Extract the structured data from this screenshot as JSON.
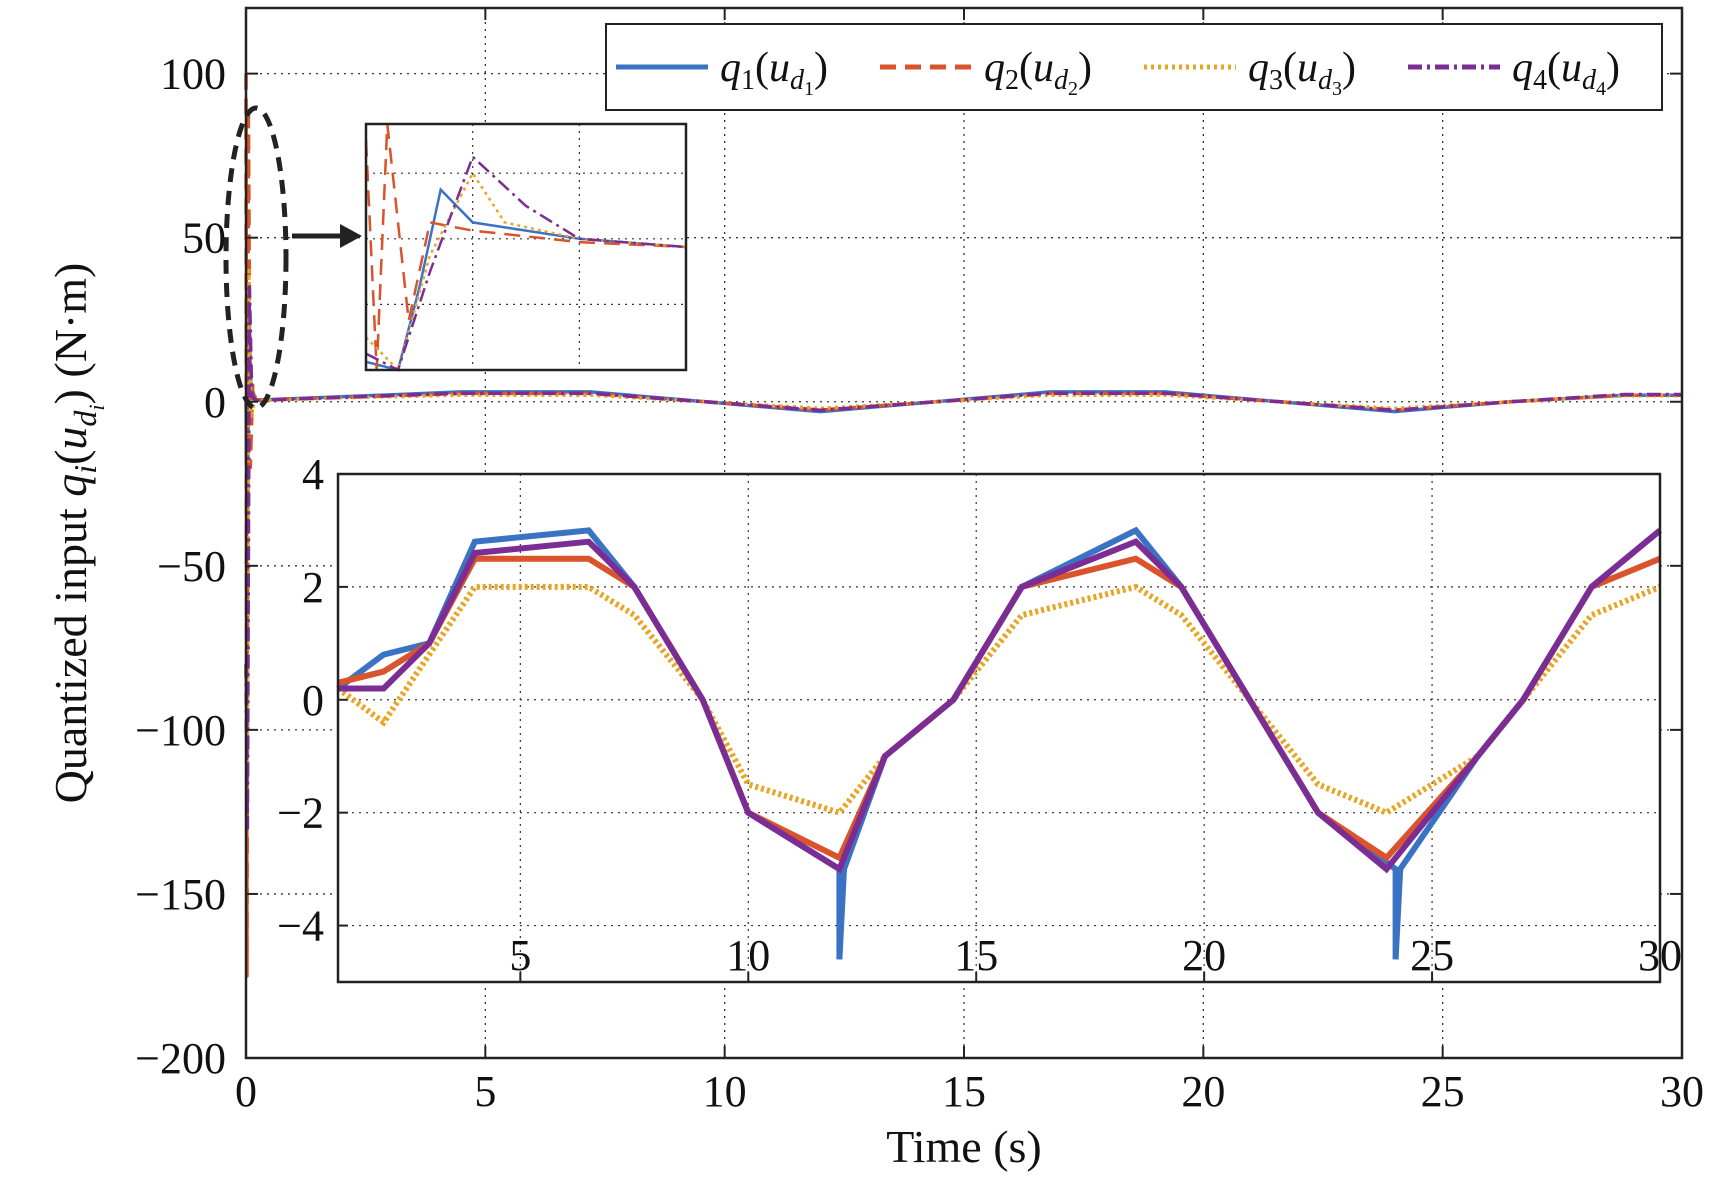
{
  "chart_data": {
    "type": "line",
    "xlabel": "Time (s)",
    "ylabel_prefix": "Quantized input ",
    "ylabel_unit": " (N·m)",
    "ylabel_q": "q",
    "ylabel_i": "i",
    "ylabel_u": "u",
    "ylabel_d": "d",
    "xlim": [
      0,
      30
    ],
    "ylim": [
      -200,
      120
    ],
    "xticks": [
      "0",
      "5",
      "10",
      "15",
      "20",
      "25",
      "30"
    ],
    "yticks": [
      "100",
      "50",
      "0",
      "−50",
      "−100",
      "−150",
      "−200"
    ],
    "ytick_values": [
      100,
      50,
      0,
      -50,
      -100,
      -150,
      -200
    ],
    "grid": true,
    "legend_position": "top-right",
    "series": [
      {
        "name": "q1(ud1)",
        "q_label": "q",
        "sub": "1",
        "u_label": "u",
        "d_label": "d",
        "d_sub": "1",
        "color": "#3b73c4",
        "dash": "solid",
        "values": [
          [
            0,
            0
          ],
          [
            0.03,
            -40
          ],
          [
            0.06,
            30
          ],
          [
            0.1,
            5
          ],
          [
            0.2,
            0.5
          ],
          [
            2,
            1.5
          ],
          [
            4.5,
            3
          ],
          [
            7.2,
            3
          ],
          [
            9.6,
            0
          ],
          [
            12,
            -3
          ],
          [
            14.4,
            0
          ],
          [
            16.8,
            3
          ],
          [
            19.2,
            3
          ],
          [
            21.6,
            0
          ],
          [
            24,
            -3
          ],
          [
            26.4,
            0
          ],
          [
            28.8,
            2
          ],
          [
            30,
            2
          ]
        ]
      },
      {
        "name": "q2(ud2)",
        "q_label": "q",
        "sub": "2",
        "u_label": "u",
        "d_label": "d",
        "d_sub": "2",
        "color": "#d9532b",
        "dash": "dashed",
        "values": [
          [
            0,
            100
          ],
          [
            0.02,
            -175
          ],
          [
            0.05,
            90
          ],
          [
            0.09,
            -20
          ],
          [
            0.14,
            5
          ],
          [
            0.2,
            0.5
          ],
          [
            2,
            1.3
          ],
          [
            4.5,
            2.5
          ],
          [
            7.2,
            2.5
          ],
          [
            9.6,
            0
          ],
          [
            12,
            -2.5
          ],
          [
            14.4,
            0
          ],
          [
            16.8,
            2.5
          ],
          [
            19.2,
            2.5
          ],
          [
            21.6,
            0
          ],
          [
            24,
            -2.5
          ],
          [
            26.4,
            0
          ],
          [
            28.8,
            2
          ],
          [
            30,
            2
          ]
        ]
      },
      {
        "name": "q3(ud3)",
        "q_label": "q",
        "sub": "3",
        "u_label": "u",
        "d_label": "d",
        "d_sub": "3",
        "color": "#e8a523",
        "dash": "dotted",
        "values": [
          [
            0,
            -80
          ],
          [
            0.03,
            -110
          ],
          [
            0.06,
            40
          ],
          [
            0.1,
            -5
          ],
          [
            0.18,
            0.3
          ],
          [
            2,
            1.2
          ],
          [
            4.5,
            2
          ],
          [
            7.2,
            2
          ],
          [
            9.6,
            0
          ],
          [
            12,
            -2
          ],
          [
            14.4,
            0
          ],
          [
            16.8,
            2
          ],
          [
            19.2,
            2
          ],
          [
            21.6,
            0
          ],
          [
            24,
            -2
          ],
          [
            26.4,
            0
          ],
          [
            28.8,
            1.8
          ],
          [
            30,
            1.8
          ]
        ]
      },
      {
        "name": "q4(ud4)",
        "q_label": "q",
        "sub": "4",
        "u_label": "u",
        "d_label": "d",
        "d_sub": "4",
        "color": "#7b2d93",
        "dash": "dashdot",
        "values": [
          [
            0,
            -80
          ],
          [
            0.03,
            -130
          ],
          [
            0.07,
            35
          ],
          [
            0.12,
            2
          ],
          [
            0.2,
            0.4
          ],
          [
            2,
            1.4
          ],
          [
            4.5,
            2.6
          ],
          [
            7.2,
            2.6
          ],
          [
            9.6,
            0
          ],
          [
            12,
            -2.6
          ],
          [
            14.4,
            0
          ],
          [
            16.8,
            2.6
          ],
          [
            19.2,
            2.6
          ],
          [
            21.6,
            0
          ],
          [
            24,
            -2.6
          ],
          [
            26.4,
            0
          ],
          [
            28.8,
            2.2
          ],
          [
            30,
            2.2
          ]
        ]
      }
    ],
    "inset_zoom": {
      "xlim": [
        1,
        30
      ],
      "ylim": [
        -5,
        4
      ],
      "xticks": [
        "5",
        "10",
        "15",
        "20",
        "25",
        "30"
      ],
      "yticks": [
        "4",
        "2",
        "0",
        "−2",
        "−4"
      ],
      "ytick_values": [
        4,
        2,
        0,
        -2,
        -4
      ],
      "series": [
        {
          "name": "q1(ud1)",
          "values": [
            [
              1,
              0.2
            ],
            [
              2,
              0.8
            ],
            [
              3,
              1
            ],
            [
              4,
              2.8
            ],
            [
              6.5,
              3
            ],
            [
              7.5,
              2
            ],
            [
              9,
              0
            ],
            [
              10,
              -2
            ],
            [
              12,
              -3
            ],
            [
              12,
              -4.6
            ],
            [
              12.1,
              -3
            ],
            [
              13,
              -1
            ],
            [
              14.5,
              0
            ],
            [
              16,
              2
            ],
            [
              18.5,
              3
            ],
            [
              19.5,
              2
            ],
            [
              21,
              0
            ],
            [
              22.5,
              -2
            ],
            [
              24.2,
              -3
            ],
            [
              24.2,
              -4.6
            ],
            [
              24.3,
              -3
            ],
            [
              26,
              -1
            ],
            [
              27,
              0
            ],
            [
              28.5,
              2
            ],
            [
              30,
              3
            ]
          ]
        },
        {
          "name": "q2(ud2)",
          "values": [
            [
              1,
              0.3
            ],
            [
              2,
              0.5
            ],
            [
              3,
              1
            ],
            [
              4,
              2.5
            ],
            [
              6.5,
              2.5
            ],
            [
              7.5,
              2
            ],
            [
              9,
              0
            ],
            [
              10,
              -2
            ],
            [
              12,
              -2.8
            ],
            [
              13,
              -1
            ],
            [
              14.5,
              0
            ],
            [
              16,
              2
            ],
            [
              18.5,
              2.5
            ],
            [
              19.5,
              2
            ],
            [
              21,
              0
            ],
            [
              22.5,
              -2
            ],
            [
              24,
              -2.8
            ],
            [
              26,
              -1
            ],
            [
              27,
              0
            ],
            [
              28.5,
              2
            ],
            [
              30,
              2.5
            ]
          ]
        },
        {
          "name": "q3(ud3)",
          "values": [
            [
              1,
              0.2
            ],
            [
              2,
              -0.4
            ],
            [
              3,
              0.8
            ],
            [
              4,
              2
            ],
            [
              6.5,
              2
            ],
            [
              7.5,
              1.5
            ],
            [
              9,
              0
            ],
            [
              10,
              -1.5
            ],
            [
              12,
              -2
            ],
            [
              13,
              -1
            ],
            [
              14.5,
              0
            ],
            [
              16,
              1.5
            ],
            [
              18.5,
              2
            ],
            [
              19.5,
              1.5
            ],
            [
              21,
              0
            ],
            [
              22.5,
              -1.5
            ],
            [
              24,
              -2
            ],
            [
              26,
              -1
            ],
            [
              27,
              0
            ],
            [
              28.5,
              1.5
            ],
            [
              30,
              2
            ]
          ]
        },
        {
          "name": "q4(ud4)",
          "values": [
            [
              1,
              0.2
            ],
            [
              2,
              0.2
            ],
            [
              3,
              1
            ],
            [
              4,
              2.6
            ],
            [
              6.5,
              2.8
            ],
            [
              7.5,
              2
            ],
            [
              9,
              0
            ],
            [
              10,
              -2
            ],
            [
              12,
              -3
            ],
            [
              13,
              -1
            ],
            [
              14.5,
              0
            ],
            [
              16,
              2
            ],
            [
              18.5,
              2.8
            ],
            [
              19.5,
              2
            ],
            [
              21,
              0
            ],
            [
              22.5,
              -2
            ],
            [
              24,
              -3
            ],
            [
              26,
              -1
            ],
            [
              27,
              0
            ],
            [
              28.5,
              2
            ],
            [
              30,
              3
            ]
          ]
        }
      ]
    },
    "inset_transient": {
      "xlim": [
        0,
        0.3
      ],
      "ylim": [
        -30,
        120
      ],
      "series": [
        {
          "name": "q1(ud1)",
          "values": [
            [
              0,
              -25
            ],
            [
              0.03,
              -30
            ],
            [
              0.05,
              20
            ],
            [
              0.07,
              80
            ],
            [
              0.1,
              60
            ],
            [
              0.15,
              55
            ],
            [
              0.2,
              50
            ],
            [
              0.3,
              45
            ]
          ]
        },
        {
          "name": "q2(ud2)",
          "values": [
            [
              0,
              110
            ],
            [
              0.01,
              -30
            ],
            [
              0.02,
              120
            ],
            [
              0.04,
              0
            ],
            [
              0.06,
              60
            ],
            [
              0.1,
              55
            ],
            [
              0.2,
              48
            ],
            [
              0.3,
              45
            ]
          ]
        },
        {
          "name": "q3(ud3)",
          "values": [
            [
              0,
              -10
            ],
            [
              0.03,
              -30
            ],
            [
              0.06,
              40
            ],
            [
              0.1,
              90
            ],
            [
              0.13,
              60
            ],
            [
              0.2,
              50
            ],
            [
              0.3,
              45
            ]
          ]
        },
        {
          "name": "q4(ud4)",
          "values": [
            [
              0,
              -20
            ],
            [
              0.03,
              -30
            ],
            [
              0.06,
              30
            ],
            [
              0.1,
              100
            ],
            [
              0.15,
              70
            ],
            [
              0.2,
              50
            ],
            [
              0.3,
              45
            ]
          ]
        }
      ]
    }
  }
}
